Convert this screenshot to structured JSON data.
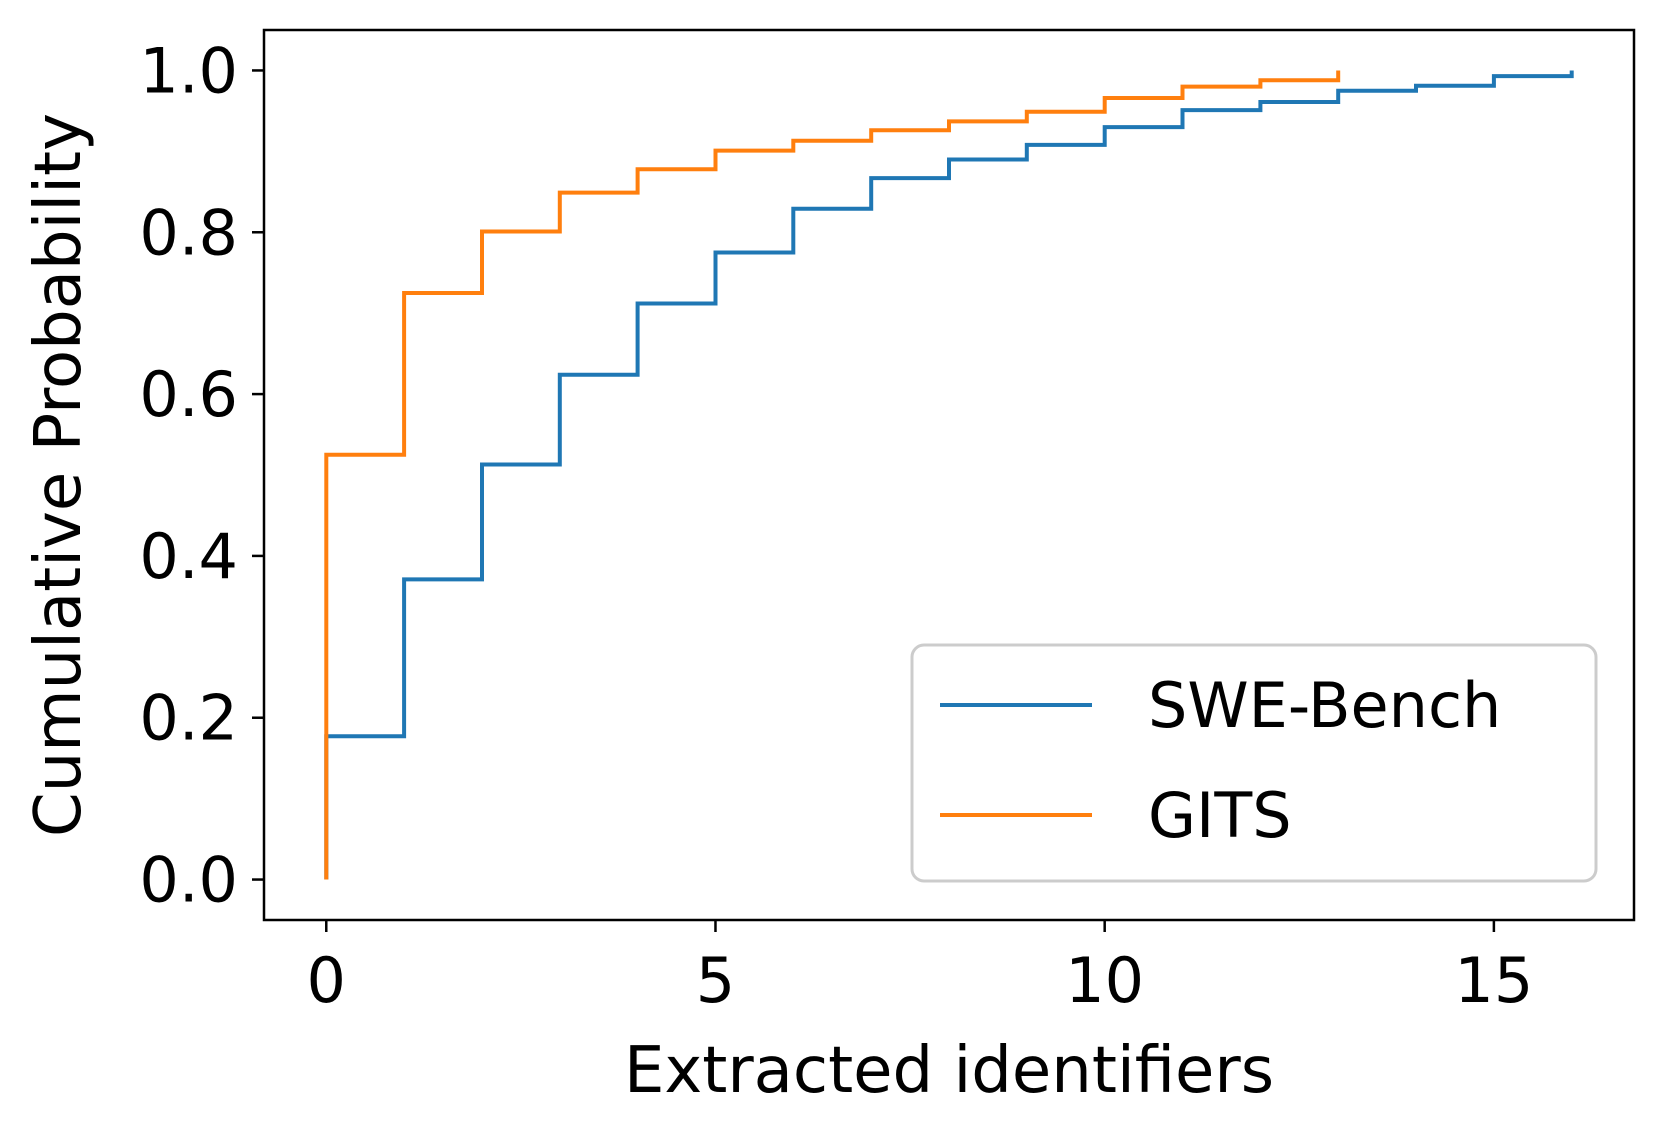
{
  "chart_data": {
    "type": "line",
    "step": true,
    "xlabel": "Extracted identifiers",
    "ylabel": "Cumulative Probability",
    "xlim": [
      -0.8,
      16.8
    ],
    "ylim": [
      -0.05,
      1.05
    ],
    "xticks": [
      0,
      5,
      10,
      15
    ],
    "xtick_labels": [
      "0",
      "5",
      "10",
      "15"
    ],
    "yticks": [
      0.0,
      0.2,
      0.4,
      0.6,
      0.8,
      1.0
    ],
    "ytick_labels": [
      "0.0",
      "0.2",
      "0.4",
      "0.6",
      "0.8",
      "1.0"
    ],
    "grid": false,
    "legend": {
      "position": "lower-right"
    },
    "series": [
      {
        "name": "SWE-Bench",
        "color": "#1f77b4",
        "x": [
          0,
          1,
          2,
          3,
          4,
          5,
          6,
          7,
          8,
          9,
          10,
          11,
          12,
          13,
          14,
          15,
          16
        ],
        "y": [
          0.177,
          0.371,
          0.513,
          0.624,
          0.712,
          0.775,
          0.829,
          0.867,
          0.89,
          0.908,
          0.93,
          0.951,
          0.961,
          0.975,
          0.981,
          0.993,
          1.0
        ]
      },
      {
        "name": "GITS",
        "color": "#ff7f0e",
        "x": [
          0,
          1,
          2,
          3,
          4,
          5,
          6,
          7,
          8,
          9,
          10,
          11,
          12,
          13
        ],
        "y": [
          0.525,
          0.725,
          0.801,
          0.849,
          0.878,
          0.901,
          0.913,
          0.926,
          0.937,
          0.949,
          0.966,
          0.98,
          0.988,
          1.0
        ]
      }
    ]
  }
}
